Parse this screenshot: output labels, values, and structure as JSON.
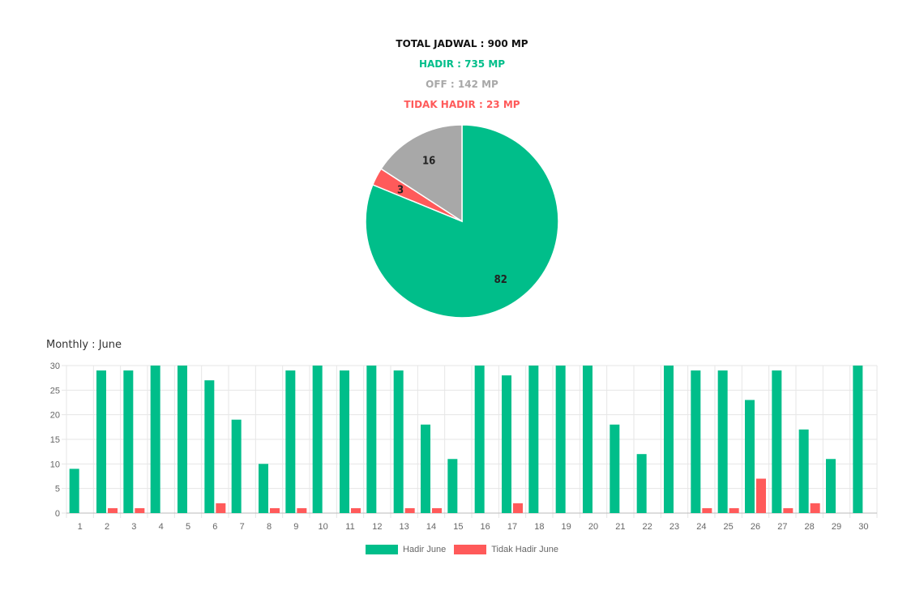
{
  "summary": {
    "total": "TOTAL JADWAL : 900 MP",
    "hadir": "HADIR : 735 MP",
    "off": "OFF : 142 MP",
    "tidak_hadir": "TIDAK HADIR : 23 MP"
  },
  "colors": {
    "hadir": "#00BE8A",
    "off": "#A8A8A8",
    "tidak_hadir": "#FF5A5A",
    "total": "#111111"
  },
  "monthly_title": "Monthly : June",
  "chart_data": [
    {
      "type": "pie",
      "slices": [
        {
          "label": "82",
          "value": 82,
          "color": "#00BE8A"
        },
        {
          "label": "3",
          "value": 3,
          "color": "#FF5A5A"
        },
        {
          "label": "16",
          "value": 16,
          "color": "#A8A8A8"
        }
      ]
    },
    {
      "type": "bar",
      "categories": [
        "1",
        "2",
        "3",
        "4",
        "5",
        "6",
        "7",
        "8",
        "9",
        "10",
        "11",
        "12",
        "13",
        "14",
        "15",
        "16",
        "17",
        "18",
        "19",
        "20",
        "21",
        "22",
        "23",
        "24",
        "25",
        "26",
        "27",
        "28",
        "29",
        "30"
      ],
      "series": [
        {
          "name": "Hadir June",
          "color": "#00BE8A",
          "values": [
            9,
            29,
            29,
            30,
            30,
            27,
            19,
            10,
            29,
            30,
            29,
            30,
            29,
            18,
            11,
            30,
            28,
            30,
            30,
            30,
            18,
            12,
            30,
            29,
            29,
            23,
            29,
            17,
            11,
            30
          ]
        },
        {
          "name": "Tidak Hadir June",
          "color": "#FF5A5A",
          "values": [
            0,
            1,
            1,
            0,
            0,
            2,
            0,
            1,
            1,
            0,
            1,
            0,
            1,
            1,
            0,
            0,
            2,
            0,
            0,
            0,
            0,
            0,
            0,
            1,
            1,
            7,
            1,
            2,
            0,
            0
          ]
        }
      ],
      "ylim": [
        0,
        30
      ],
      "yticks": [
        0,
        5,
        10,
        15,
        20,
        25,
        30
      ],
      "grid": true,
      "legend": "bottom"
    }
  ]
}
